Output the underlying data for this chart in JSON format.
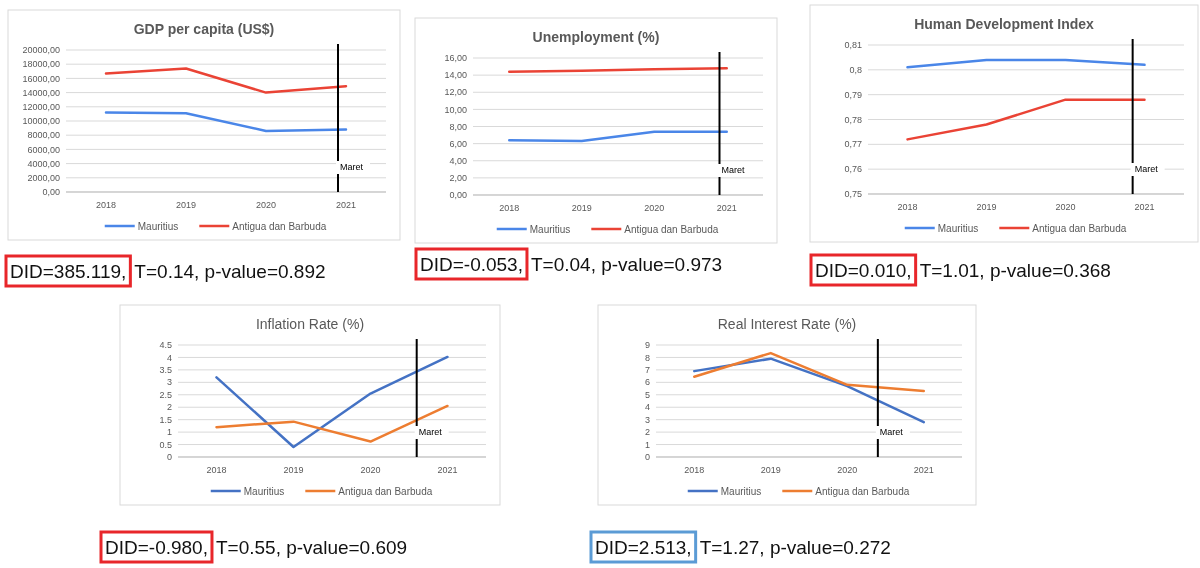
{
  "chart_data": [
    {
      "type": "line",
      "title": "GDP per capita (US$)",
      "x": [
        2018,
        2019,
        2020,
        2021
      ],
      "xlim": [
        2017.5,
        2021.5
      ],
      "xticks": [
        2018,
        2019,
        2020,
        2021
      ],
      "ylim": [
        0,
        20000
      ],
      "yticks": [
        {
          "value": 0,
          "label": "0,00"
        },
        {
          "value": 2000,
          "label": "2000,00"
        },
        {
          "value": 4000,
          "label": "4000,00"
        },
        {
          "value": 6000,
          "label": "6000,00"
        },
        {
          "value": 8000,
          "label": "8000,00"
        },
        {
          "value": 10000,
          "label": "10000,00"
        },
        {
          "value": 12000,
          "label": "12000,00"
        },
        {
          "value": 14000,
          "label": "14000,00"
        },
        {
          "value": 16000,
          "label": "16000,00"
        },
        {
          "value": 18000,
          "label": "18000,00"
        },
        {
          "value": 20000,
          "label": "20000,00"
        }
      ],
      "grid": "y",
      "legend": "bottom",
      "series": [
        {
          "name": "Mauritius",
          "color": "#4a86e8",
          "values": [
            11200,
            11100,
            8600,
            8800
          ]
        },
        {
          "name": "Antigua dan Barbuda",
          "color": "#ea4335",
          "values": [
            16700,
            17400,
            14000,
            14900
          ]
        }
      ],
      "ref_lines": [
        {
          "axis": "x",
          "value": 2020.9,
          "label": "Maret",
          "color": "#000000"
        }
      ],
      "annotations": [
        "DID=385.119,",
        "T=0.14, p-value=0.892"
      ]
    },
    {
      "type": "line",
      "title": "Unemployment (%)",
      "x": [
        2018,
        2019,
        2020,
        2021
      ],
      "xlim": [
        2017.5,
        2021.5
      ],
      "xticks": [
        2018,
        2019,
        2020,
        2021
      ],
      "ylim": [
        0,
        16
      ],
      "yticks": [
        {
          "value": 0,
          "label": "0,00"
        },
        {
          "value": 2,
          "label": "2,00"
        },
        {
          "value": 4,
          "label": "4,00"
        },
        {
          "value": 6,
          "label": "6,00"
        },
        {
          "value": 8,
          "label": "8,00"
        },
        {
          "value": 10,
          "label": "10,00"
        },
        {
          "value": 12,
          "label": "12,00"
        },
        {
          "value": 14,
          "label": "14,00"
        },
        {
          "value": 16,
          "label": "16,00"
        }
      ],
      "grid": "y",
      "legend": "bottom",
      "series": [
        {
          "name": "Mauritius",
          "color": "#4a86e8",
          "values": [
            6.4,
            6.3,
            7.4,
            7.4
          ]
        },
        {
          "name": "Antigua dan Barbuda",
          "color": "#ea4335",
          "values": [
            14.4,
            14.5,
            14.7,
            14.8
          ]
        }
      ],
      "ref_lines": [
        {
          "axis": "x",
          "value": 2020.9,
          "label": "Maret",
          "color": "#000000"
        }
      ],
      "annotations": [
        "DID=-0.053,",
        "T=0.04, p-value=0.973"
      ]
    },
    {
      "type": "line",
      "title": "Human Development Index",
      "x": [
        2018,
        2019,
        2020,
        2021
      ],
      "xlim": [
        2017.5,
        2021.5
      ],
      "xticks": [
        2018,
        2019,
        2020,
        2021
      ],
      "ylim": [
        0.75,
        0.81
      ],
      "yticks": [
        {
          "value": 0.75,
          "label": "0,75"
        },
        {
          "value": 0.76,
          "label": "0,76"
        },
        {
          "value": 0.77,
          "label": "0,77"
        },
        {
          "value": 0.78,
          "label": "0,78"
        },
        {
          "value": 0.79,
          "label": "0,79"
        },
        {
          "value": 0.8,
          "label": "0,8"
        },
        {
          "value": 0.81,
          "label": "0,81"
        }
      ],
      "grid": "y",
      "legend": "bottom",
      "series": [
        {
          "name": "Mauritius",
          "color": "#4a86e8",
          "values": [
            0.801,
            0.804,
            0.804,
            0.802
          ]
        },
        {
          "name": "Antigua dan Barbuda",
          "color": "#ea4335",
          "values": [
            0.772,
            0.778,
            0.788,
            0.788
          ]
        }
      ],
      "ref_lines": [
        {
          "axis": "x",
          "value": 2020.85,
          "label": "Maret",
          "color": "#000000"
        }
      ],
      "annotations": [
        "DID=0.010,",
        "T=1.01, p-value=0.368"
      ]
    },
    {
      "type": "line",
      "title": "Inflation Rate (%)",
      "x": [
        2018,
        2019,
        2020,
        2021
      ],
      "xlim": [
        2017.5,
        2021.5
      ],
      "xticks": [
        2018,
        2019,
        2020,
        2021
      ],
      "ylim": [
        0,
        4.5
      ],
      "yticks": [
        0,
        0.5,
        1,
        1.5,
        2,
        2.5,
        3,
        3.5,
        4,
        4.5
      ],
      "grid": "y",
      "legend": "bottom",
      "series": [
        {
          "name": "Mauritius",
          "color": "#4472c4",
          "values": [
            3.2,
            0.4,
            2.55,
            4.02
          ]
        },
        {
          "name": "Antigua dan Barbuda",
          "color": "#ed7d31",
          "values": [
            1.2,
            1.42,
            0.62,
            2.05
          ]
        }
      ],
      "ref_lines": [
        {
          "axis": "x",
          "value": 2020.6,
          "label": "Maret",
          "color": "#000000"
        }
      ],
      "annotations": [
        "DID=-0.980,",
        "T=0.55, p-value=0.609"
      ]
    },
    {
      "type": "line",
      "title": "Real Interest Rate (%)",
      "x": [
        2018,
        2019,
        2020,
        2021
      ],
      "xlim": [
        2017.5,
        2021.5
      ],
      "xticks": [
        2018,
        2019,
        2020,
        2021
      ],
      "ylim": [
        0,
        9
      ],
      "yticks": [
        0,
        1,
        2,
        3,
        4,
        5,
        6,
        7,
        8,
        9
      ],
      "grid": "y",
      "legend": "bottom",
      "series": [
        {
          "name": "Mauritius",
          "color": "#4472c4",
          "values": [
            6.9,
            7.9,
            5.7,
            2.8
          ]
        },
        {
          "name": "Antigua dan Barbuda",
          "color": "#ed7d31",
          "values": [
            6.45,
            8.35,
            5.8,
            5.3
          ]
        }
      ],
      "ref_lines": [
        {
          "axis": "x",
          "value": 2020.4,
          "label": "Maret",
          "color": "#000000"
        }
      ],
      "annotations": [
        "DID=2.513,",
        "T=1.27, p-value=0.272"
      ]
    }
  ]
}
